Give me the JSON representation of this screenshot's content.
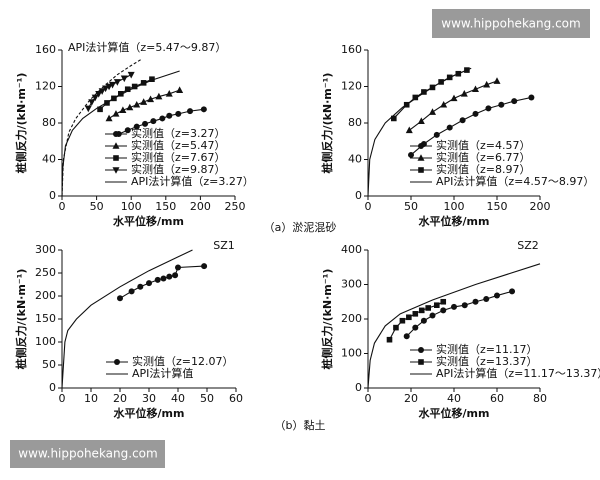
{
  "watermarks": [
    "www.hippohekang.com",
    "www.hippohekang.com"
  ],
  "captions": [
    "（a）淤泥混砂",
    "（b）黏土"
  ],
  "chart_data": [
    {
      "type": "line",
      "xlabel": "水平位移/mm",
      "ylabel": "桩侧反力/(kN·m⁻¹)",
      "xlim": [
        0,
        250
      ],
      "xticks": [
        0,
        50,
        100,
        150,
        200,
        250
      ],
      "ylim": [
        0,
        160
      ],
      "yticks": [
        0,
        40,
        80,
        120,
        160
      ],
      "legend": "lower right",
      "series": [
        {
          "name": "实测值（z=3.27）",
          "color": "#111",
          "marker": "circle",
          "x": [
            82,
            95,
            108,
            120,
            132,
            145,
            155,
            168,
            185,
            205
          ],
          "values": [
            68,
            72,
            76,
            79,
            82,
            85,
            88,
            90,
            93,
            95
          ]
        },
        {
          "name": "实测值（z=5.47）",
          "color": "#111",
          "marker": "triangle",
          "x": [
            68,
            78,
            88,
            98,
            108,
            118,
            128,
            140,
            155,
            170
          ],
          "values": [
            85,
            90,
            94,
            97,
            100,
            103,
            106,
            109,
            112,
            116
          ]
        },
        {
          "name": "实测值（z=7.67）",
          "color": "#111",
          "marker": "square",
          "x": [
            55,
            65,
            75,
            85,
            95,
            105,
            118,
            130
          ],
          "values": [
            95,
            102,
            107,
            112,
            117,
            120,
            124,
            128
          ]
        },
        {
          "name": "实测值（z=9.87）",
          "color": "#111",
          "marker": "triangle-down",
          "x": [
            38,
            43,
            48,
            53,
            58,
            63,
            68,
            73,
            80,
            90,
            100
          ],
          "values": [
            96,
            103,
            108,
            112,
            115,
            118,
            120,
            122,
            125,
            129,
            133
          ]
        },
        {
          "name": "API法计算值（z=3.27）",
          "color": "#111",
          "marker": "none",
          "x": [
            0,
            1,
            5,
            15,
            30,
            50,
            75,
            100,
            130,
            170
          ],
          "values": [
            0,
            30,
            55,
            72,
            85,
            96,
            107,
            117,
            127,
            137
          ]
        },
        {
          "name": "API法计算值（z=5.47～9.87）",
          "color": "#111",
          "marker": "none",
          "dash": true,
          "in_legend": false,
          "x": [
            0,
            2,
            10,
            20,
            40,
            60,
            80,
            100,
            115
          ],
          "values": [
            0,
            40,
            70,
            85,
            105,
            120,
            133,
            143,
            150
          ]
        }
      ]
    },
    {
      "type": "line",
      "xlabel": "水平位移/mm",
      "ylabel": "桩侧反力/(kN·m⁻¹)",
      "xlim": [
        0,
        200
      ],
      "xticks": [
        0,
        50,
        100,
        150,
        200
      ],
      "ylim": [
        0,
        160
      ],
      "yticks": [
        0,
        40,
        80,
        120,
        160
      ],
      "legend": "lower right",
      "series": [
        {
          "name": "实测值（z=4.57）",
          "color": "#111",
          "marker": "circle",
          "x": [
            50,
            65,
            80,
            95,
            110,
            125,
            140,
            155,
            170,
            190
          ],
          "values": [
            45,
            57,
            67,
            75,
            83,
            90,
            96,
            100,
            104,
            108
          ]
        },
        {
          "name": "实测值（z=6.77）",
          "color": "#111",
          "marker": "triangle",
          "x": [
            48,
            62,
            75,
            88,
            100,
            112,
            125,
            138,
            150
          ],
          "values": [
            72,
            82,
            92,
            100,
            107,
            112,
            117,
            122,
            126
          ]
        },
        {
          "name": "实测值（z=8.97）",
          "color": "#111",
          "marker": "square",
          "x": [
            30,
            45,
            55,
            65,
            75,
            85,
            95,
            105,
            115
          ],
          "values": [
            85,
            100,
            108,
            114,
            119,
            125,
            130,
            134,
            138
          ]
        },
        {
          "name": "API法计算值（z=4.57～8.97）",
          "color": "#111",
          "marker": "none",
          "x": [
            0,
            2,
            8,
            20,
            40,
            60,
            80,
            100,
            120
          ],
          "values": [
            0,
            40,
            62,
            80,
            97,
            110,
            122,
            132,
            140
          ]
        }
      ]
    },
    {
      "type": "line",
      "xlabel": "水平位移/mm",
      "ylabel": "桩侧反力/(kN·m⁻¹)",
      "annotation": "SZ1",
      "xlim": [
        0,
        60
      ],
      "xticks": [
        0,
        10,
        20,
        30,
        40,
        50,
        60
      ],
      "ylim": [
        0,
        300
      ],
      "yticks": [
        0,
        50,
        100,
        150,
        200,
        250,
        300
      ],
      "legend": "lower right",
      "series": [
        {
          "name": "实测值（z=12.07）",
          "color": "#111",
          "marker": "circle",
          "x": [
            20,
            24,
            27,
            30,
            33,
            35,
            37,
            39,
            40,
            49
          ],
          "values": [
            195,
            210,
            220,
            228,
            235,
            238,
            242,
            245,
            262,
            265
          ]
        },
        {
          "name": "API法计算值",
          "color": "#111",
          "marker": "none",
          "x": [
            0,
            1,
            2,
            5,
            10,
            20,
            30,
            40,
            45
          ],
          "values": [
            0,
            100,
            125,
            150,
            180,
            220,
            255,
            285,
            300
          ]
        }
      ]
    },
    {
      "type": "line",
      "xlabel": "水平位移/mm",
      "ylabel": "桩侧反力/(kN·m⁻¹)",
      "annotation": "SZ2",
      "xlim": [
        0,
        80
      ],
      "xticks": [
        0,
        20,
        40,
        60,
        80
      ],
      "ylim": [
        0,
        400
      ],
      "yticks": [
        0,
        100,
        200,
        300,
        400
      ],
      "legend": "lower right",
      "series": [
        {
          "name": "实测值（z=11.17）",
          "color": "#111",
          "marker": "circle",
          "x": [
            18,
            22,
            26,
            30,
            35,
            40,
            45,
            50,
            55,
            60,
            67
          ],
          "values": [
            150,
            175,
            195,
            210,
            225,
            235,
            240,
            250,
            258,
            268,
            280
          ]
        },
        {
          "name": "实测值（z=13.37）",
          "color": "#111",
          "marker": "square",
          "x": [
            10,
            13,
            16,
            19,
            22,
            25,
            28,
            32,
            35
          ],
          "values": [
            140,
            175,
            195,
            205,
            215,
            225,
            232,
            240,
            250
          ]
        },
        {
          "name": "API法计算值（z=11.17～13.37）",
          "color": "#111",
          "marker": "none",
          "x": [
            0,
            1,
            3,
            8,
            15,
            30,
            50,
            80
          ],
          "values": [
            0,
            80,
            130,
            180,
            215,
            255,
            300,
            360
          ]
        }
      ]
    }
  ]
}
